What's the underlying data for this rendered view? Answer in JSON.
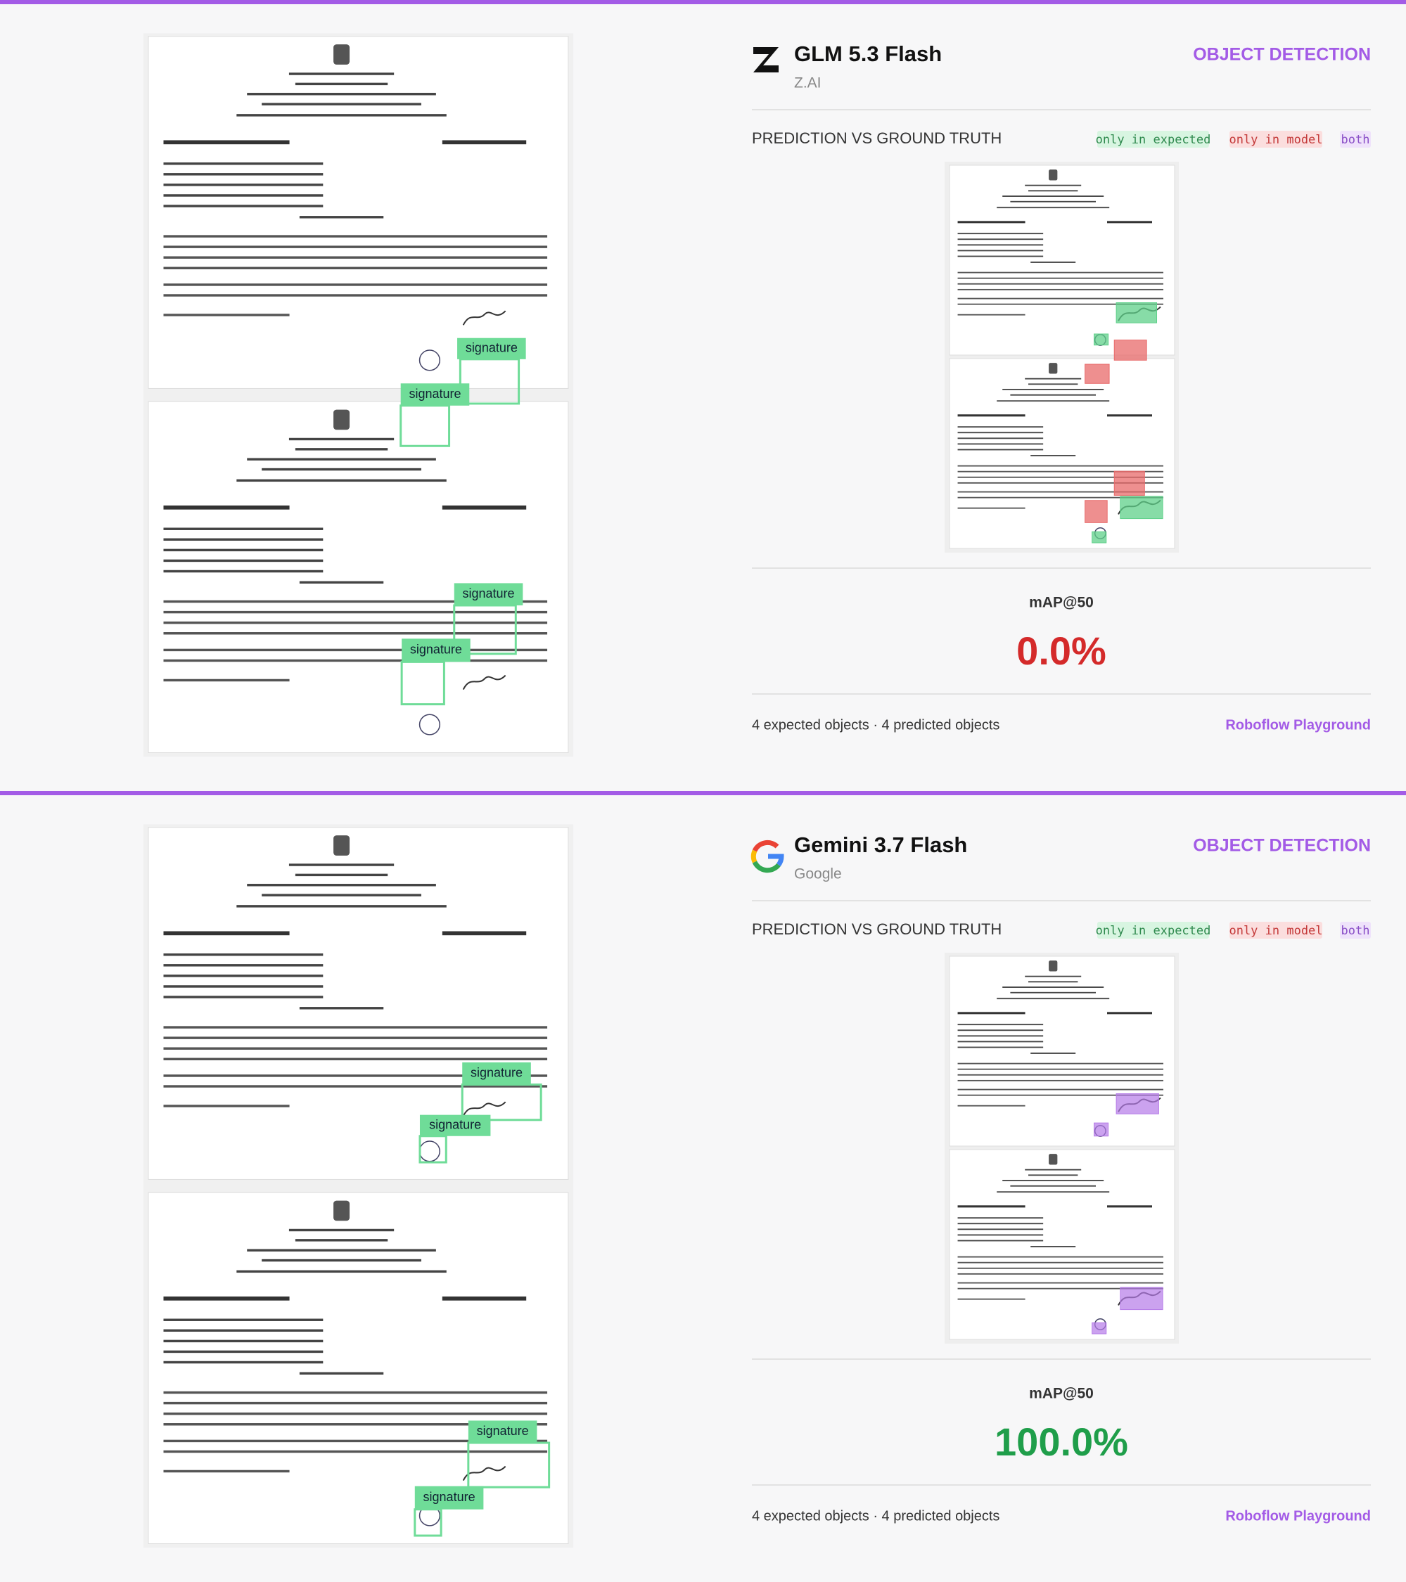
{
  "cards": [
    {
      "model": {
        "name": "GLM 5.3 Flash",
        "provider": "Z.AI"
      },
      "task": "OBJECT DETECTION",
      "section_title": "PREDICTION VS GROUND TRUTH",
      "legend": [
        "only in expected",
        "only in model",
        "both"
      ],
      "boxes": [
        "signature",
        "signature",
        "signature",
        "signature"
      ],
      "metric": {
        "label": "mAP@50",
        "value": "0.0%"
      },
      "footer": {
        "counts": "4 expected objects · 4 predicted objects",
        "link": "Roboflow Playground"
      }
    },
    {
      "model": {
        "name": "Gemini 3.7 Flash",
        "provider": "Google"
      },
      "task": "OBJECT DETECTION",
      "section_title": "PREDICTION VS GROUND TRUTH",
      "legend": [
        "only in expected",
        "only in model",
        "both"
      ],
      "boxes": [
        "signature",
        "signature",
        "signature",
        "signature"
      ],
      "metric": {
        "label": "mAP@50",
        "value": "100.0%"
      },
      "footer": {
        "counts": "4 expected objects · 4 predicted objects",
        "link": "Roboflow Playground"
      }
    }
  ]
}
